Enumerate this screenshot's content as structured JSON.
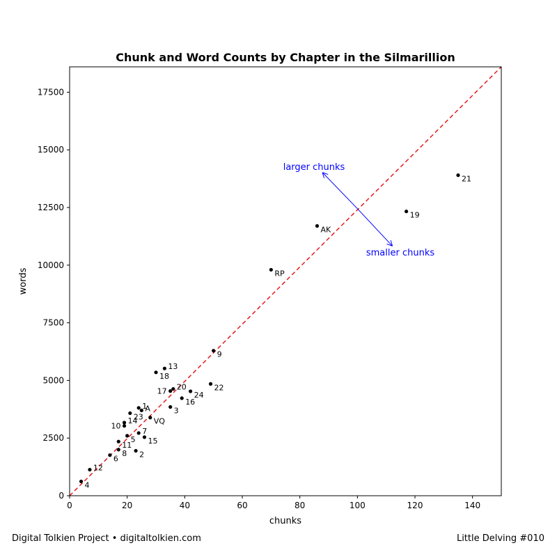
{
  "chart_data": {
    "type": "scatter",
    "title": "Chunk and Word Counts by Chapter in the Silmarillion",
    "xlabel": "chunks",
    "ylabel": "words",
    "xlim": [
      0,
      150
    ],
    "ylim": [
      0,
      18600
    ],
    "xticks": [
      0,
      20,
      40,
      60,
      80,
      100,
      120,
      140
    ],
    "yticks": [
      0,
      2500,
      5000,
      7500,
      10000,
      12500,
      15000,
      17500
    ],
    "grid": false,
    "reference_line": {
      "slope": 124,
      "intercept": 0,
      "color": "#e31a1c",
      "style": "dashed"
    },
    "point_color": "#000000",
    "annotation_color": "#0000ff",
    "points": [
      {
        "label": "4",
        "x": 4,
        "y": 620
      },
      {
        "label": "12",
        "x": 7,
        "y": 1130
      },
      {
        "label": "6",
        "x": 14,
        "y": 1760
      },
      {
        "label": "8",
        "x": 17,
        "y": 2000
      },
      {
        "label": "11",
        "x": 17,
        "y": 2350
      },
      {
        "label": "2",
        "x": 23,
        "y": 1950
      },
      {
        "label": "5",
        "x": 20,
        "y": 2600
      },
      {
        "label": "15",
        "x": 26,
        "y": 2540
      },
      {
        "label": "7",
        "x": 24,
        "y": 2720
      },
      {
        "label": "10",
        "x": 19,
        "y": 3030
      },
      {
        "label": "14",
        "x": 19,
        "y": 3170
      },
      {
        "label": "23",
        "x": 21,
        "y": 3580
      },
      {
        "label": "VQ",
        "x": 28,
        "y": 3390
      },
      {
        "label": "A",
        "x": 25,
        "y": 3700
      },
      {
        "label": "1",
        "x": 24,
        "y": 3810
      },
      {
        "label": "3",
        "x": 35,
        "y": 3850
      },
      {
        "label": "16",
        "x": 39,
        "y": 4230
      },
      {
        "label": "24",
        "x": 42,
        "y": 4530
      },
      {
        "label": "17",
        "x": 35,
        "y": 4540
      },
      {
        "label": "20",
        "x": 36,
        "y": 4630
      },
      {
        "label": "22",
        "x": 49,
        "y": 4850
      },
      {
        "label": "18",
        "x": 30,
        "y": 5350
      },
      {
        "label": "13",
        "x": 33,
        "y": 5520
      },
      {
        "label": "9",
        "x": 50,
        "y": 6290
      },
      {
        "label": "RP",
        "x": 70,
        "y": 9800
      },
      {
        "label": "AK",
        "x": 86,
        "y": 11700
      },
      {
        "label": "19",
        "x": 117,
        "y": 12330
      },
      {
        "label": "21",
        "x": 135,
        "y": 13900
      }
    ],
    "annotations": [
      {
        "text": "larger chunks",
        "tip": [
          88,
          14000
        ],
        "tail": [
          100,
          12450
        ]
      },
      {
        "text": "smaller chunks",
        "tip": [
          112,
          10850
        ],
        "tail": [
          100,
          12450
        ]
      }
    ]
  },
  "footer": {
    "left": "Digital Tolkien Project • digitaltolkien.com",
    "right": "Little Delving #010"
  }
}
